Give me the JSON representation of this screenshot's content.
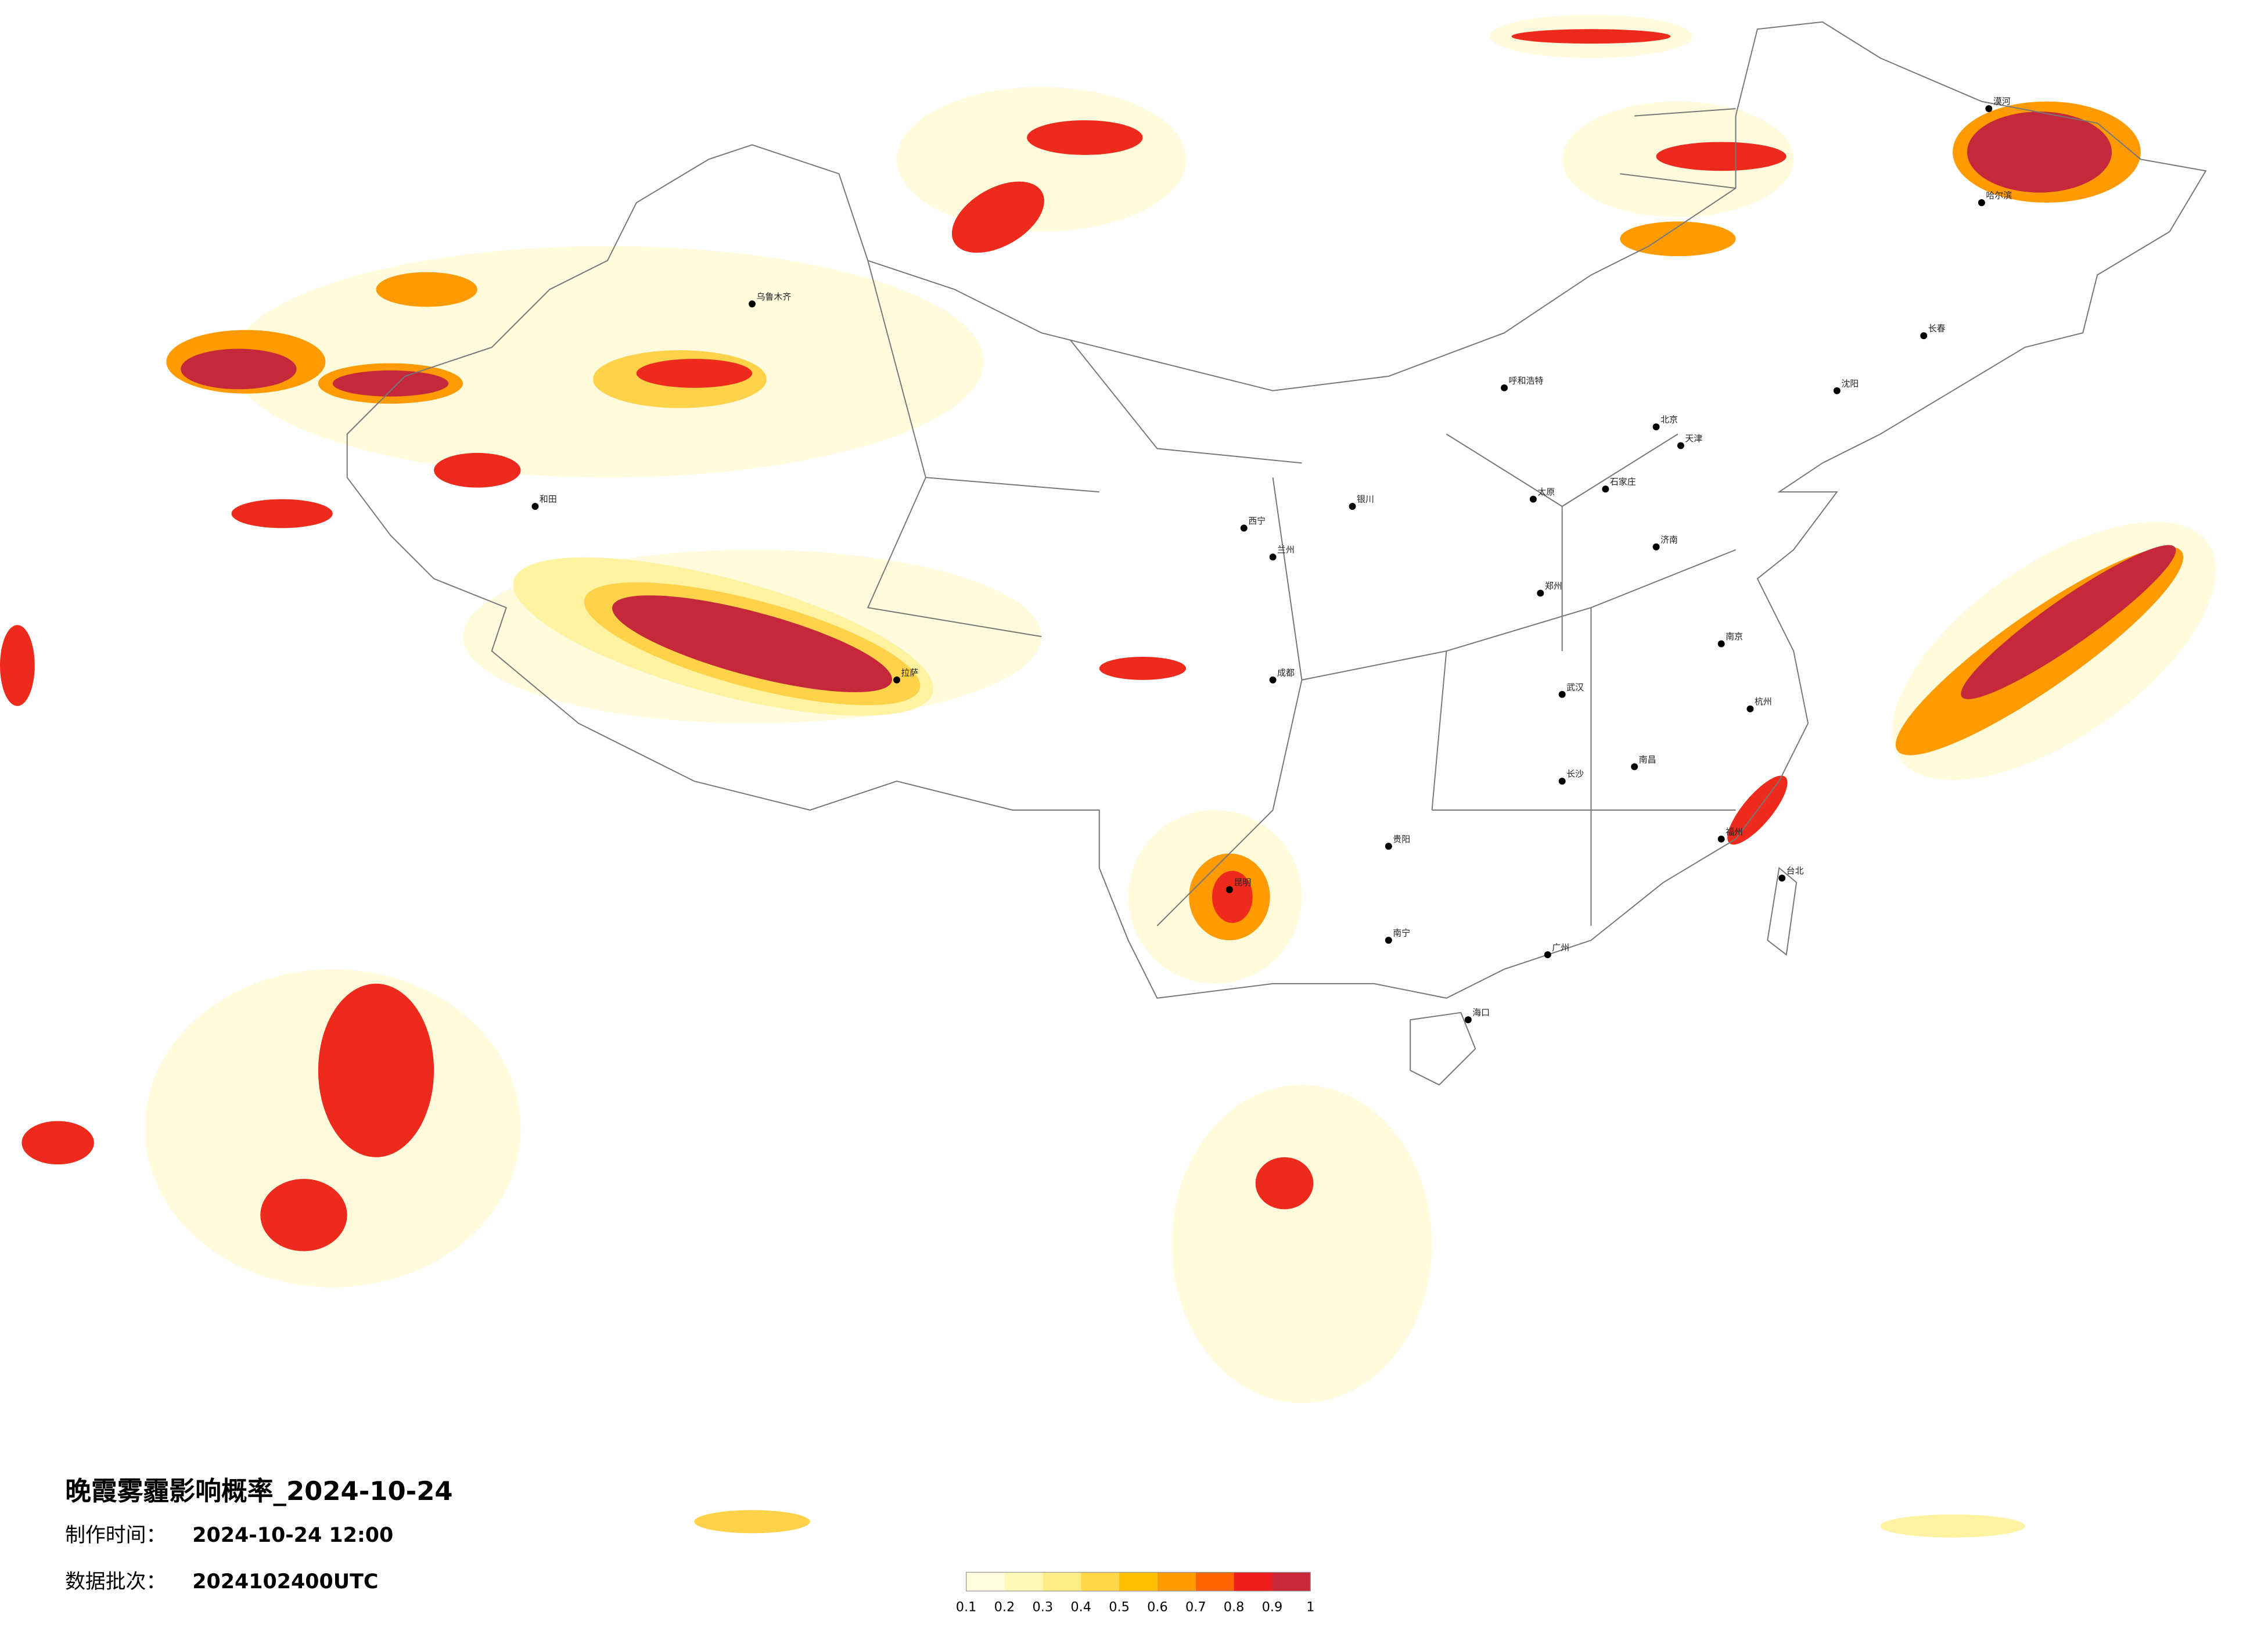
{
  "title": "晚霞雾霾影响概率_2024-10-24",
  "made_label": "制作时间：",
  "made_time": "2024-10-24 12:00",
  "batch_label": "数据批次：",
  "batch": "2024102400UTC",
  "colorbar": {
    "ticks": [
      0.1,
      0.2,
      0.3,
      0.4,
      0.5,
      0.6,
      0.7,
      0.8,
      0.9,
      1
    ],
    "colors": [
      "#fffde0",
      "#fff8b8",
      "#ffee88",
      "#ffd84a",
      "#ffc000",
      "#ff9a00",
      "#ff6400",
      "#ee1c1c",
      "#c8283a"
    ]
  },
  "cities": [
    {
      "name": "北京"
    },
    {
      "name": "天津"
    },
    {
      "name": "石家庄"
    },
    {
      "name": "太原"
    },
    {
      "name": "呼和浩特"
    },
    {
      "name": "郑州"
    },
    {
      "name": "武汉"
    },
    {
      "name": "长沙"
    },
    {
      "name": "南昌"
    },
    {
      "name": "贵阳"
    },
    {
      "name": "昆明"
    },
    {
      "name": "南宁"
    },
    {
      "name": "广州"
    },
    {
      "name": "海口"
    },
    {
      "name": "拉萨"
    },
    {
      "name": "西宁"
    },
    {
      "name": "兰州"
    },
    {
      "name": "银川"
    },
    {
      "name": "成都"
    },
    {
      "name": "哈尔滨"
    },
    {
      "name": "长春"
    },
    {
      "name": "沈阳"
    },
    {
      "name": "济南"
    },
    {
      "name": "南京"
    },
    {
      "name": "杭州"
    },
    {
      "name": "福州"
    },
    {
      "name": "台北"
    },
    {
      "name": "乌鲁木齐"
    },
    {
      "name": "和田"
    },
    {
      "name": "漠河"
    }
  ]
}
